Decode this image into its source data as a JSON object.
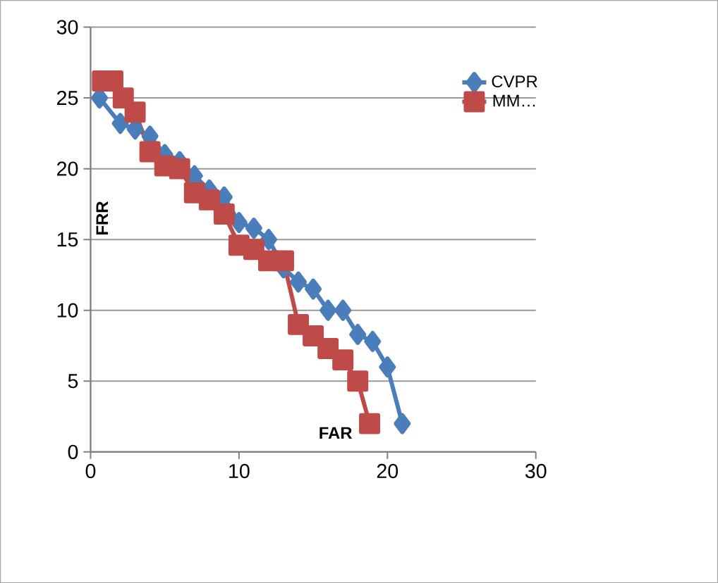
{
  "chart_data": {
    "type": "line",
    "xlabel": "FAR",
    "ylabel": "FRR",
    "xlim": [
      0,
      30
    ],
    "ylim": [
      0,
      30
    ],
    "xticks": [
      0,
      10,
      20,
      30
    ],
    "yticks": [
      0,
      5,
      10,
      15,
      20,
      25,
      30
    ],
    "grid": "y",
    "legend": "top right",
    "series": [
      {
        "name": "CVPR",
        "color": "#4a7ebb",
        "marker": "diamond",
        "x": [
          0.6,
          2,
          3,
          4,
          5,
          6,
          7,
          8,
          9,
          10,
          11,
          12,
          13,
          14,
          15,
          16,
          17,
          18,
          19,
          20,
          21
        ],
        "values": [
          25,
          23.2,
          22.8,
          22.3,
          21,
          20.5,
          19.5,
          18.5,
          18,
          16.2,
          15.8,
          15,
          13,
          12,
          11.5,
          10,
          10,
          8.3,
          7.8,
          6,
          2
        ]
      },
      {
        "name": "MM…",
        "color": "#be4b48",
        "marker": "square",
        "x": [
          0.8,
          1.5,
          2.2,
          3,
          4,
          5,
          6,
          7,
          8,
          9,
          10,
          11,
          12,
          13,
          14,
          15,
          16,
          17,
          18,
          18.8
        ],
        "values": [
          26.2,
          26.2,
          25,
          24,
          21.2,
          20.2,
          20,
          18.3,
          17.8,
          16.8,
          14.6,
          14.3,
          13.5,
          13.5,
          9,
          8.2,
          7.3,
          6.5,
          5,
          2
        ]
      }
    ]
  }
}
